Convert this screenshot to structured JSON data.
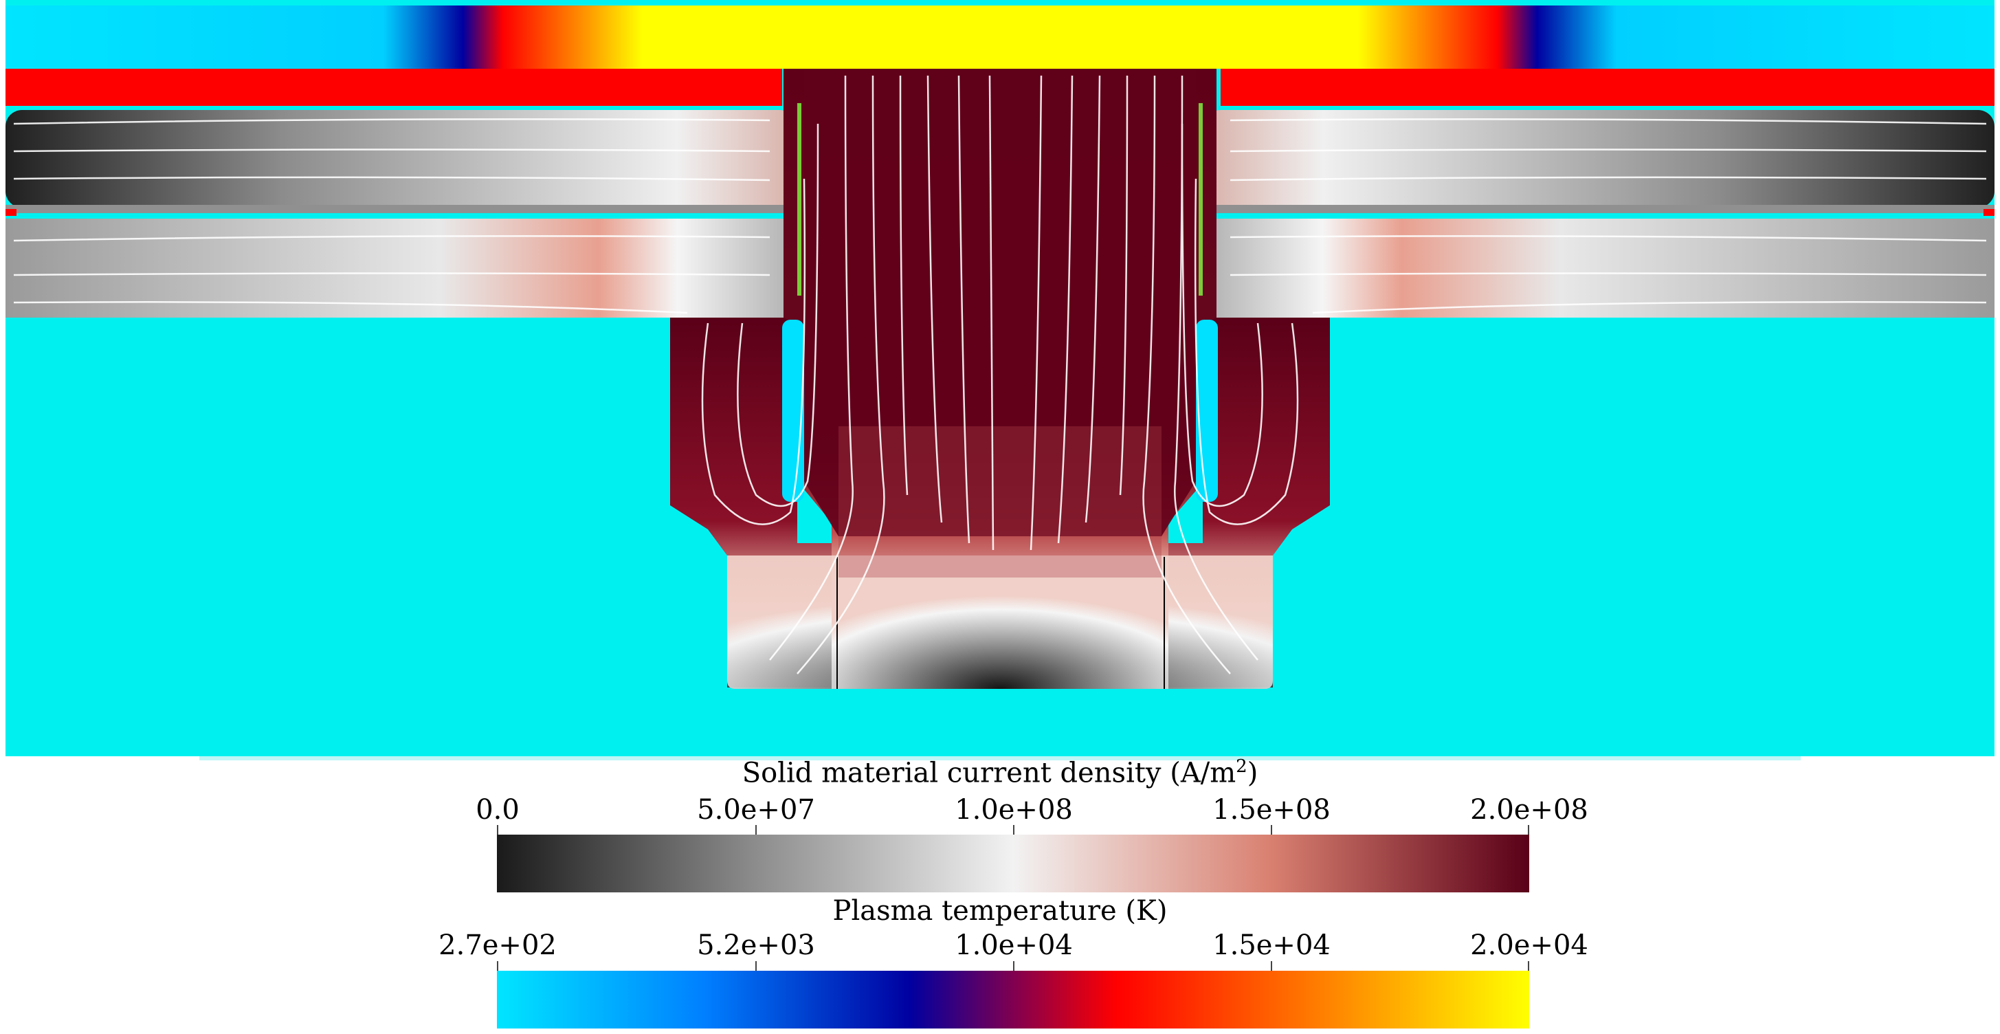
{
  "colorbars": {
    "current": {
      "title_main": "Solid material current density (A/m",
      "title_sup": "2",
      "title_end": ")",
      "ticks": [
        "0.0",
        "5.0e+07",
        "1.0e+08",
        "1.5e+08",
        "2.0e+08"
      ],
      "colors": [
        "#1a1a1a",
        "#8c8c8c",
        "#f2f2f2",
        "#d98070",
        "#5a0018"
      ]
    },
    "plasma": {
      "title": "Plasma temperature (K)",
      "ticks": [
        "2.7e+02",
        "5.2e+03",
        "1.0e+04",
        "1.5e+04",
        "2.0e+04"
      ],
      "colors": [
        "#00e5ff",
        "#0080ff",
        "#0000a0",
        "#ff0000",
        "#ff8000",
        "#ffff00"
      ]
    }
  }
}
